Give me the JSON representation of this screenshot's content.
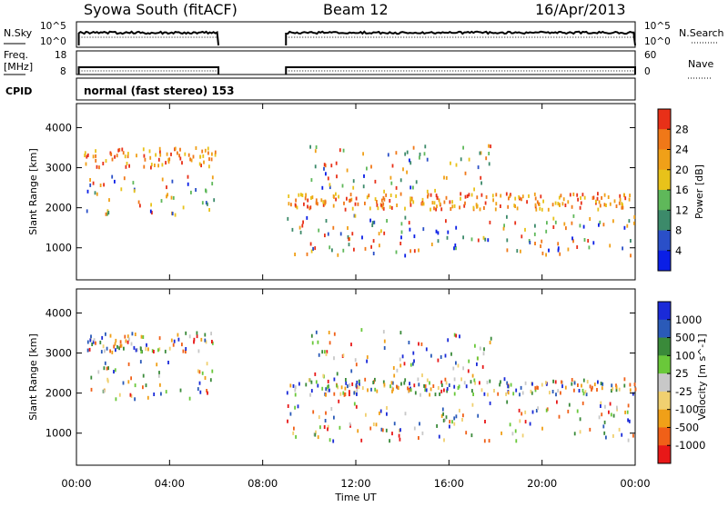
{
  "header": {
    "station": "Syowa South (fitACF)",
    "beam": "Beam 12",
    "date": "16/Apr/2013"
  },
  "left_labels": {
    "nsky": "N.Sky",
    "freq_line1": "Freq.",
    "freq_line2": "[MHz]",
    "cpid": "CPID"
  },
  "right_labels": {
    "nsearch": "N.Search",
    "nave": "Nave"
  },
  "mode_text": "normal (fast stereo) 153",
  "noise_panel": {
    "left_ticks": [
      "10^5",
      "10^0"
    ],
    "right_ticks": [
      "10^5",
      "10^0"
    ]
  },
  "freq_panel": {
    "left_ticks": [
      "18",
      "8"
    ],
    "right_ticks": [
      "60",
      "0"
    ]
  },
  "time_axis": {
    "title": "Time UT",
    "ticks": [
      "00:00",
      "04:00",
      "08:00",
      "12:00",
      "16:00",
      "20:00",
      "00:00"
    ]
  },
  "chart_data": [
    {
      "type": "scatter",
      "panel": "power",
      "ylabel": "Slant Range [km]",
      "y_ticks": [
        "1000",
        "2000",
        "3000",
        "4000"
      ],
      "ylim": [
        200,
        4600
      ],
      "xlim_hours": [
        0,
        24
      ],
      "data_gap_hours": [
        6.1,
        9.0
      ],
      "colorbar": {
        "label": "Power [dB]",
        "ticks": [
          "4",
          "8",
          "12",
          "16",
          "20",
          "24",
          "28"
        ],
        "colors": [
          "#0a1ee6",
          "#2a4fc8",
          "#3c8a6a",
          "#5fb85a",
          "#e8c21a",
          "#f0a018",
          "#f07818",
          "#e83018"
        ]
      },
      "scatter_bands_km": [
        {
          "center": 3250,
          "spread": 250,
          "hours": [
            0.3,
            6.0
          ],
          "note_color_bias": "high"
        },
        {
          "center": 2150,
          "spread": 200,
          "hours": [
            9.0,
            24.0
          ],
          "note_color_bias": "high"
        },
        {
          "center": 2300,
          "spread": 500,
          "hours": [
            0.3,
            6.0
          ],
          "note_color_bias": "mixed"
        },
        {
          "center": 3000,
          "spread": 600,
          "hours": [
            10.0,
            18.0
          ],
          "note_color_bias": "mixed"
        },
        {
          "center": 1300,
          "spread": 500,
          "hours": [
            9.0,
            24.0
          ],
          "note_color_bias": "mixed"
        }
      ]
    },
    {
      "type": "scatter",
      "panel": "velocity",
      "ylabel": "Slant Range [km]",
      "y_ticks": [
        "1000",
        "2000",
        "3000",
        "4000"
      ],
      "ylim": [
        200,
        4600
      ],
      "xlim_hours": [
        0,
        24
      ],
      "data_gap_hours": [
        6.1,
        9.0
      ],
      "colorbar": {
        "label": "Velocity [m s^-1]",
        "ticks": [
          "1000",
          "500",
          "100",
          "25",
          "-25",
          "-100",
          "-500",
          "-1000"
        ],
        "colors": [
          "#1a2ad8",
          "#2a5ab8",
          "#3a8a3a",
          "#6ac83a",
          "#c8c8c8",
          "#f0d070",
          "#f0a018",
          "#f06018",
          "#e81818"
        ]
      }
    }
  ]
}
